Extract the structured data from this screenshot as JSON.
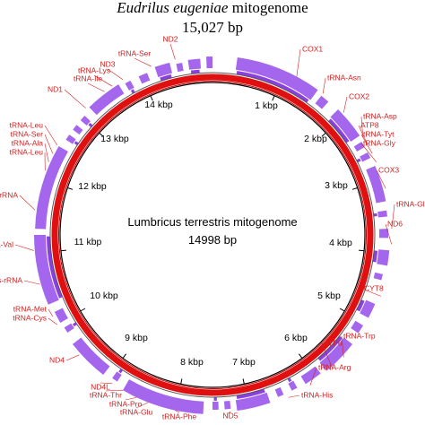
{
  "header": {
    "species": "Eudrilus eugeniae",
    "suffix": "mitogenome",
    "length": "15,027 bp"
  },
  "center": {
    "name": "Lumbricus terrestris mitogenome",
    "length": "14998 bp"
  },
  "scale_labels": [
    "1 kbp",
    "2 kbp",
    "3 kbp",
    "4 kbp",
    "5 kbp",
    "6 kbp",
    "7 kbp",
    "8 kbp",
    "9 kbp",
    "10 kbp",
    "11 kbp",
    "12 kbp",
    "13 kbp",
    "14 kbp"
  ],
  "genes": [
    "ND2",
    "tRNA-Ser",
    "ND3",
    "tRNA-Lys",
    "tRNA-Ile",
    "ND1",
    "tRNA-Leu",
    "tRNA-Ser",
    "tRNA-Ala",
    "tRNA-Leu",
    "l-rRNA",
    "tRNA-Val",
    "s-rRNA",
    "tRNA-Met",
    "tRNA-Cys",
    "ND4",
    "ND4L",
    "tRNA-Thr",
    "tRNA-Pro",
    "tRNA-Glu",
    "tRNA-Phe",
    "ND5",
    "tRNA-His",
    "tRNA-Arg",
    "ATP6",
    "tRNA-Trp",
    "CYT8",
    "ND6",
    "tRNA-Gl",
    "COX3",
    "tRNA-Gly",
    "tRNA-Tyt",
    "ATP8",
    "tRNA-Asp",
    "COX2",
    "tRNA-Asn",
    "COX1"
  ]
}
